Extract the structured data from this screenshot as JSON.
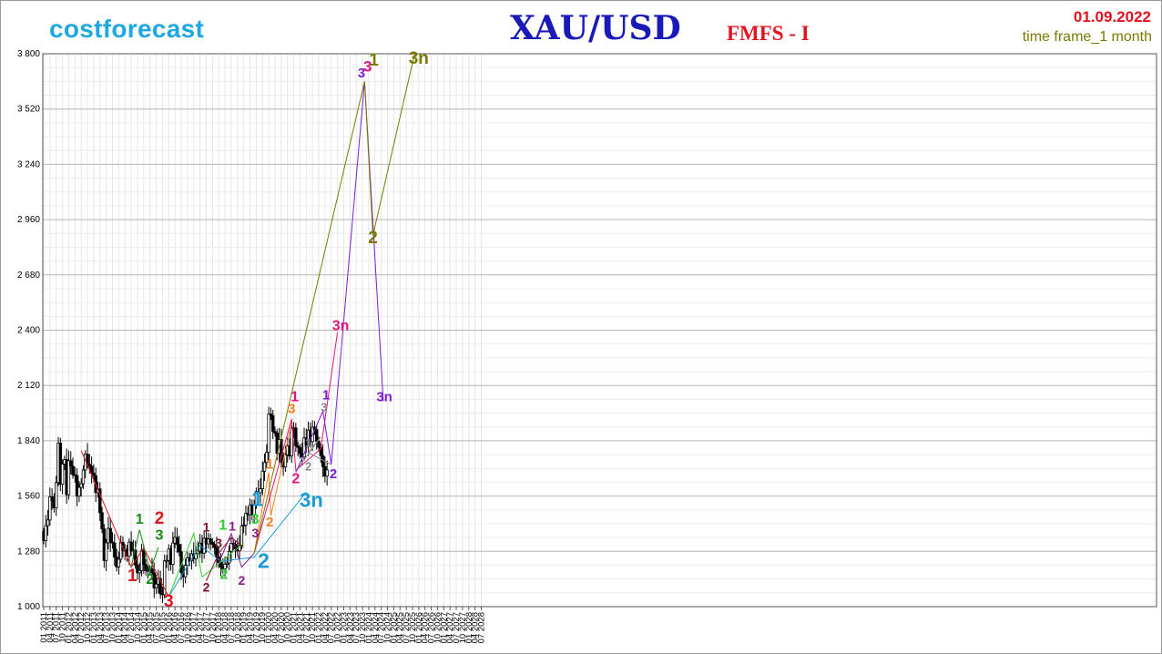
{
  "header": {
    "brand": "costforecast",
    "title": "XAU/USD",
    "subtitle": "FMFS - I",
    "date": "01.09.2022",
    "timeframe": "time frame_1 month"
  },
  "chart_data": {
    "type": "candlestick",
    "y_range": [
      1000,
      3800
    ],
    "y_ticks": [
      1000,
      1280,
      1560,
      1840,
      2120,
      2400,
      2680,
      2960,
      3240,
      3520,
      3800
    ],
    "y_tick_labels": [
      "1 000",
      "1 280",
      "1 560",
      "1 840",
      "2 120",
      "2 400",
      "2 680",
      "2 960",
      "3 240",
      "3 520",
      "3 800"
    ],
    "x_start": "01 2011",
    "x_end": "07 2028",
    "x_tick_labels": [
      "01 2011",
      "04 2011",
      "07 2011",
      "10 2011",
      "01 2012",
      "04 2012",
      "07 2012",
      "10 2012",
      "01 2013",
      "04 2013",
      "07 2013",
      "10 2013",
      "01 2014",
      "04 2014",
      "07 2014",
      "10 2014",
      "01 2015",
      "04 2015",
      "07 2015",
      "10 2015",
      "01 2016",
      "04 2016",
      "07 2016",
      "10 2016",
      "01 2017",
      "04 2017",
      "07 2017",
      "10 2017",
      "01 2018",
      "04 2018",
      "07 2018",
      "10 2018",
      "01 2019",
      "04 2019",
      "07 2019",
      "10 2019",
      "01 2020",
      "04 2020",
      "07 2020",
      "10 2020",
      "01 2021",
      "04 2021",
      "07 2021",
      "10 2021",
      "01 2022",
      "04 2022",
      "07 2022",
      "10 2022",
      "01 2023",
      "04 2023",
      "07 2023",
      "10 2023",
      "01 2024",
      "04 2024",
      "07 2024",
      "10 2024",
      "01 2025",
      "04 2025",
      "07 2025",
      "10 2025",
      "01 2026",
      "04 2026",
      "07 2026",
      "10 2026",
      "01 2027",
      "04 2027",
      "07 2027",
      "10 2027",
      "01 2028",
      "04 2028",
      "07 2028"
    ],
    "grid": true,
    "close_prices": [
      1334,
      1410,
      1439,
      1556,
      1536,
      1500,
      1628,
      1828,
      1620,
      1722,
      1745,
      1567,
      1739,
      1711,
      1668,
      1664,
      1560,
      1604,
      1622,
      1692,
      1772,
      1720,
      1711,
      1676,
      1663,
      1578,
      1596,
      1476,
      1394,
      1234,
      1323,
      1396,
      1327,
      1322,
      1251,
      1201,
      1240,
      1326,
      1284,
      1291,
      1256,
      1327,
      1282,
      1287,
      1211,
      1171,
      1183,
      1283,
      1213,
      1183,
      1184,
      1191,
      1171,
      1095,
      1114,
      1142,
      1065,
      1061,
      1232,
      1234,
      1292,
      1214,
      1322,
      1351,
      1315,
      1277,
      1173,
      1151,
      1210,
      1248,
      1232,
      1268,
      1242,
      1268,
      1281,
      1322,
      1271,
      1346,
      1318,
      1343,
      1325,
      1315,
      1299,
      1251,
      1224,
      1201,
      1192,
      1215,
      1221,
      1280,
      1321,
      1316,
      1292,
      1283,
      1310,
      1409,
      1413,
      1472,
      1465,
      1515,
      1464,
      1517,
      1583,
      1577,
      1597,
      1686,
      1730,
      1781,
      1975,
      1968,
      1887,
      1879,
      1776,
      1847,
      1733,
      1707,
      1769,
      1814,
      1763,
      1903,
      1905,
      1814,
      1806,
      1775,
      1758,
      1855,
      1815,
      1894,
      1836,
      1909,
      1896,
      1837,
      1807,
      1765,
      1709,
      1661,
      1692
    ]
  },
  "wave_labels": {
    "orange_1": "1",
    "orange_2": "2",
    "orange_3": "3",
    "pink_1": "1",
    "pink_2": "2",
    "pink_3": "3",
    "pink_3n": "3n",
    "purple_1": "1",
    "purple_2": "2",
    "purple_3": "3",
    "purple_3n": "3n",
    "olive_1": "1",
    "olive_2": "2",
    "olive_3n": "3n",
    "grey_1": "1",
    "grey_2": "2",
    "grey_3": "3",
    "blue_1": "1",
    "blue_2": "2",
    "blue_3n": "3n",
    "red_1": "1",
    "red_2": "2",
    "red_3": "3",
    "green_1": "1",
    "green_2": "2",
    "green_3": "3",
    "maroon_1": "1",
    "maroon_2": "2",
    "maroon_3": "3",
    "lime_1": "1",
    "lime_2": "2",
    "lime_3": "3",
    "violet_1": "1",
    "violet_2": "2",
    "violet_3": "3"
  },
  "colors": {
    "brand": "#1fa8e0",
    "title": "#1a1ab8",
    "accent_red": "#e0141e",
    "olive": "#7a7a00",
    "pink": "#e0157a",
    "purple": "#7b1fd6",
    "blue": "#1a9ad6",
    "orange": "#f07f1e",
    "green": "#1a8a1a",
    "lime": "#33cc33",
    "maroon": "#7a0f2a",
    "violet": "#8a1a8a",
    "grey": "#8a8a8a"
  }
}
